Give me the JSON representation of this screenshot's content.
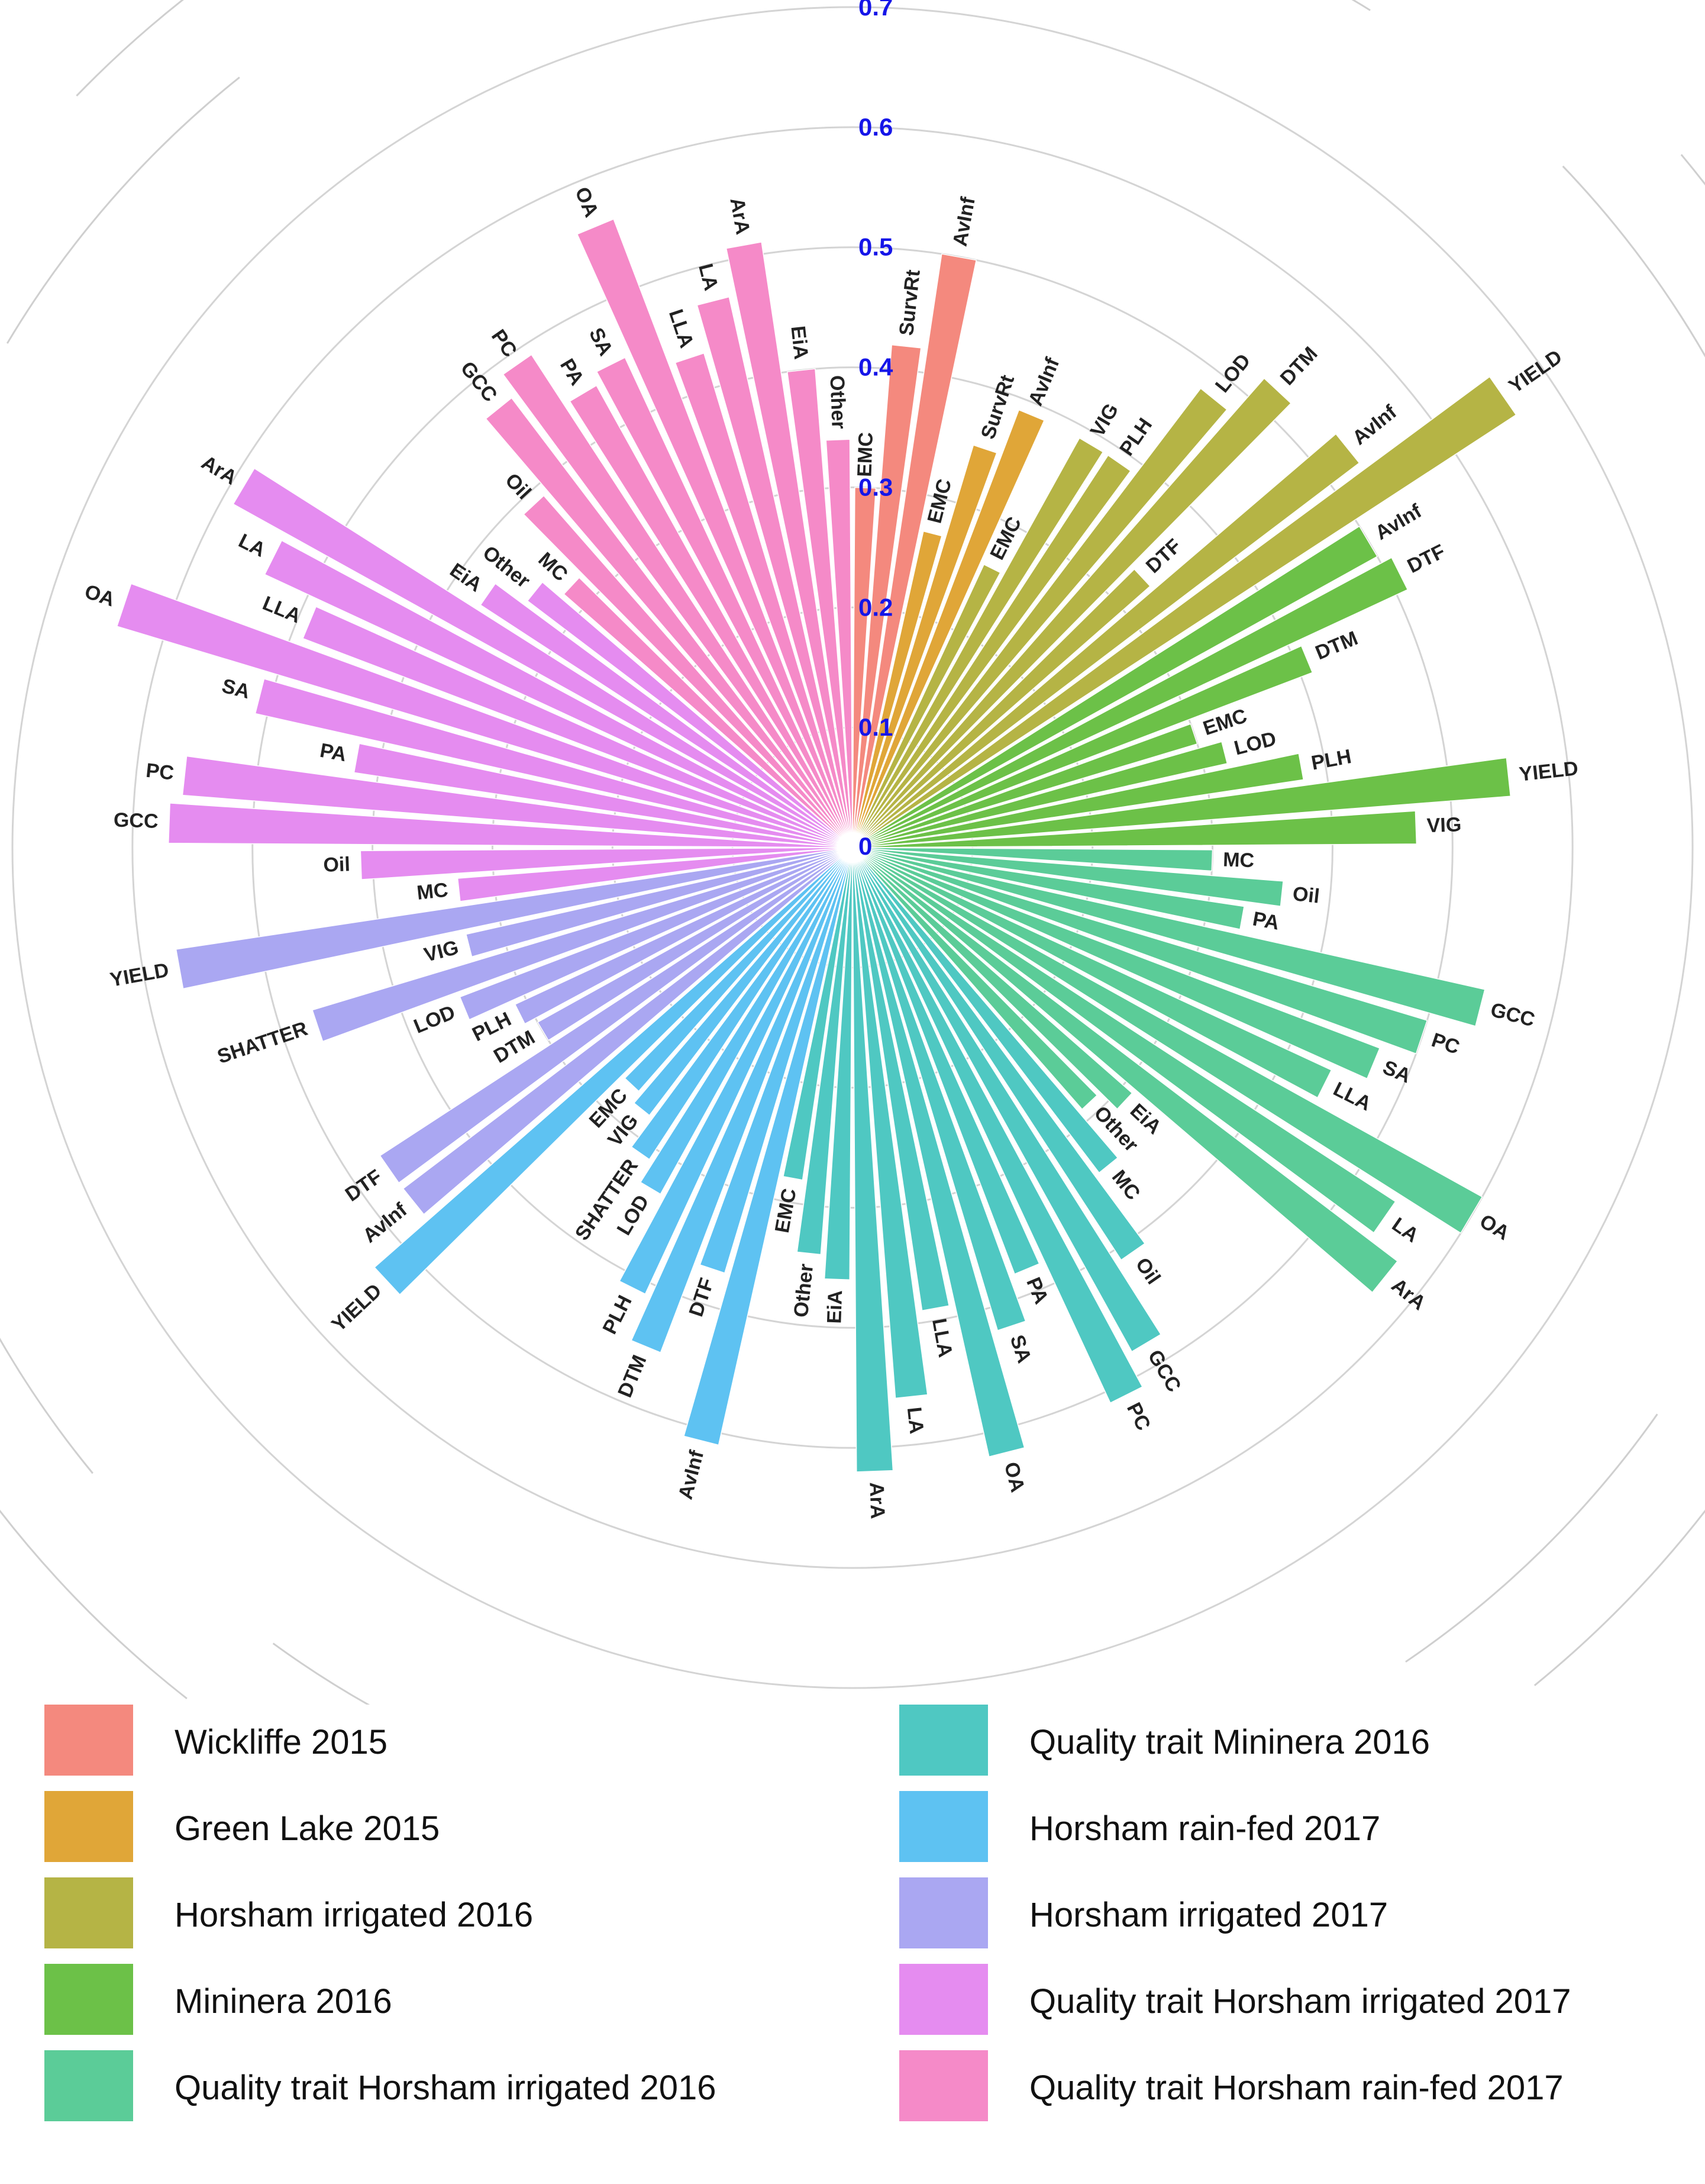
{
  "chart_data": {
    "type": "circular-bar",
    "title": "",
    "radial_axis": {
      "ticks": [
        "0",
        "0.1",
        "0.2",
        "0.3",
        "0.4",
        "0.5",
        "0.6",
        "0.7"
      ],
      "range": [
        0,
        0.7
      ],
      "tick_color": "#1515e8"
    },
    "groups": [
      {
        "name": "Wickliffe 2015",
        "color": "#f4897e",
        "bars": [
          {
            "label": "EMC",
            "value": 0.3
          },
          {
            "label": "SurvRt",
            "value": 0.42
          },
          {
            "label": "AvInf",
            "value": 0.5
          }
        ]
      },
      {
        "name": "Green Lake 2015",
        "color": "#e0a638",
        "bars": [
          {
            "label": "EMC",
            "value": 0.27
          },
          {
            "label": "SurvRt",
            "value": 0.35
          },
          {
            "label": "AvInf",
            "value": 0.39
          }
        ]
      },
      {
        "name": "Horsham irrigated 2016",
        "color": "#b5b445",
        "bars": [
          {
            "label": "EMC",
            "value": 0.26
          },
          {
            "label": "VIG",
            "value": 0.39
          },
          {
            "label": "PLH",
            "value": 0.39
          },
          {
            "label": "LOD",
            "value": 0.48
          },
          {
            "label": "DTM",
            "value": 0.52
          },
          {
            "label": "DTF",
            "value": 0.33
          },
          {
            "label": "AvInf",
            "value": 0.53
          },
          {
            "label": "YIELD",
            "value": 0.66
          }
        ]
      },
      {
        "name": "Mininera 2016",
        "color": "#6cc148",
        "bars": [
          {
            "label": "AvInf",
            "value": 0.5
          },
          {
            "label": "DTF",
            "value": 0.51
          },
          {
            "label": "DTM",
            "value": 0.41
          },
          {
            "label": "EMC",
            "value": 0.3
          },
          {
            "label": "LOD",
            "value": 0.32
          },
          {
            "label": "PLH",
            "value": 0.38
          },
          {
            "label": "YIELD",
            "value": 0.55
          },
          {
            "label": "VIG",
            "value": 0.47
          }
        ]
      },
      {
        "name": "Quality trait Horsham irrigated 2016",
        "color": "#5bcc98",
        "bars": [
          {
            "label": "MC",
            "value": 0.3
          },
          {
            "label": "Oil",
            "value": 0.36
          },
          {
            "label": "PA",
            "value": 0.33
          },
          {
            "label": "GCC",
            "value": 0.54
          },
          {
            "label": "PC",
            "value": 0.5
          },
          {
            "label": "SA",
            "value": 0.47
          },
          {
            "label": "LLA",
            "value": 0.44
          },
          {
            "label": "OA",
            "value": 0.6
          },
          {
            "label": "LA",
            "value": 0.54
          },
          {
            "label": "ArA",
            "value": 0.57
          },
          {
            "label": "EiA",
            "value": 0.31
          },
          {
            "label": "Other",
            "value": 0.29
          }
        ]
      },
      {
        "name": "Quality trait Mininera 2016",
        "color": "#4fc8c2",
        "bars": [
          {
            "label": "MC",
            "value": 0.34
          },
          {
            "label": "Oil",
            "value": 0.41
          },
          {
            "label": "GCC",
            "value": 0.48
          },
          {
            "label": "PC",
            "value": 0.51
          },
          {
            "label": "PA",
            "value": 0.38
          },
          {
            "label": "SA",
            "value": 0.42
          },
          {
            "label": "OA",
            "value": 0.52
          },
          {
            "label": "LLA",
            "value": 0.39
          },
          {
            "label": "LA",
            "value": 0.46
          },
          {
            "label": "ArA",
            "value": 0.52
          },
          {
            "label": "EiA",
            "value": 0.36
          },
          {
            "label": "Other",
            "value": 0.34
          },
          {
            "label": "EMC",
            "value": 0.28
          }
        ]
      },
      {
        "name": "Horsham rain-fed 2017",
        "color": "#5ec2f2",
        "bars": [
          {
            "label": "AvInf",
            "value": 0.51
          },
          {
            "label": "DTF",
            "value": 0.37
          },
          {
            "label": "DTM",
            "value": 0.45
          },
          {
            "label": "PLH",
            "value": 0.41
          },
          {
            "label": "LOD",
            "value": 0.33
          },
          {
            "label": "SHATTER",
            "value": 0.31
          },
          {
            "label": "VIG",
            "value": 0.28
          },
          {
            "label": "EMC",
            "value": 0.27
          },
          {
            "label": "YIELD",
            "value": 0.53
          }
        ]
      },
      {
        "name": "Horsham irrigated 2017",
        "color": "#aaa7f2",
        "bars": [
          {
            "label": "AvInf",
            "value": 0.47
          },
          {
            "label": "DTF",
            "value": 0.47
          },
          {
            "label": "DTM",
            "value": 0.3
          },
          {
            "label": "PLH",
            "value": 0.31
          },
          {
            "label": "LOD",
            "value": 0.35
          },
          {
            "label": "SHATTER",
            "value": 0.47
          },
          {
            "label": "VIG",
            "value": 0.33
          },
          {
            "label": "YIELD",
            "value": 0.57
          }
        ]
      },
      {
        "name": "Quality trait Horsham irrigated 2017",
        "color": "#e58cf0",
        "bars": [
          {
            "label": "MC",
            "value": 0.33
          },
          {
            "label": "Oil",
            "value": 0.41
          },
          {
            "label": "GCC",
            "value": 0.57
          },
          {
            "label": "PC",
            "value": 0.56
          },
          {
            "label": "PA",
            "value": 0.42
          },
          {
            "label": "SA",
            "value": 0.51
          },
          {
            "label": "OA",
            "value": 0.64
          },
          {
            "label": "LLA",
            "value": 0.49
          },
          {
            "label": "LA",
            "value": 0.54
          },
          {
            "label": "ArA",
            "value": 0.59
          },
          {
            "label": "EiA",
            "value": 0.37
          },
          {
            "label": "Other",
            "value": 0.34
          }
        ]
      },
      {
        "name": "Quality trait Horsham rain-fed 2017",
        "color": "#f58ac8",
        "bars": [
          {
            "label": "MC",
            "value": 0.32
          },
          {
            "label": "Oil",
            "value": 0.39
          },
          {
            "label": "GCC",
            "value": 0.47
          },
          {
            "label": "PC",
            "value": 0.49
          },
          {
            "label": "PA",
            "value": 0.44
          },
          {
            "label": "SA",
            "value": 0.45
          },
          {
            "label": "OA",
            "value": 0.56
          },
          {
            "label": "LLA",
            "value": 0.43
          },
          {
            "label": "LA",
            "value": 0.47
          },
          {
            "label": "ArA",
            "value": 0.51
          },
          {
            "label": "EiA",
            "value": 0.4
          },
          {
            "label": "Other",
            "value": 0.34
          }
        ]
      }
    ]
  },
  "legend": {
    "left": [
      {
        "label": "Wickliffe 2015",
        "color": "#f4897e"
      },
      {
        "label": "Green Lake 2015",
        "color": "#e0a638"
      },
      {
        "label": "Horsham irrigated 2016",
        "color": "#b5b445"
      },
      {
        "label": "Mininera 2016",
        "color": "#6cc148"
      },
      {
        "label": "Quality trait Horsham irrigated 2016",
        "color": "#5bcc98"
      }
    ],
    "right": [
      {
        "label": "Quality trait Mininera 2016",
        "color": "#4fc8c2"
      },
      {
        "label": "Horsham rain-fed 2017",
        "color": "#5ec2f2"
      },
      {
        "label": "Horsham irrigated 2017",
        "color": "#aaa7f2"
      },
      {
        "label": "Quality trait Horsham irrigated 2017",
        "color": "#e58cf0"
      },
      {
        "label": "Quality trait Horsham rain-fed 2017",
        "color": "#f58ac8"
      }
    ]
  }
}
